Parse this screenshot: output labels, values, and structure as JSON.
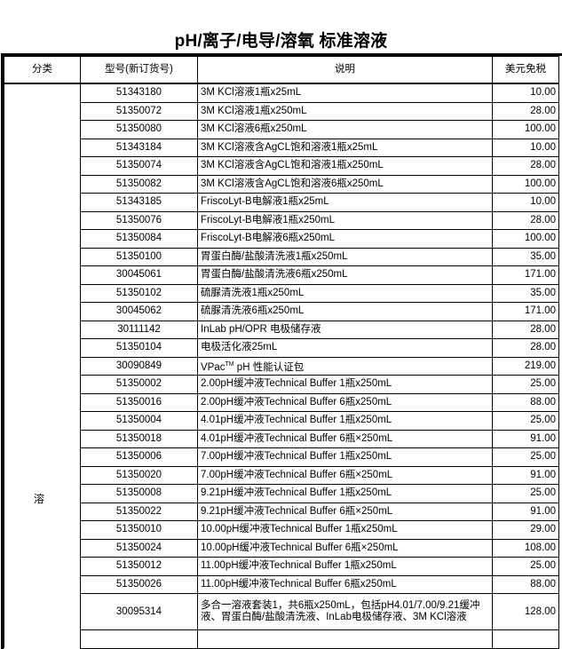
{
  "title": "pH/离子/电导/溶氧 标准溶液",
  "columns": [
    "分类",
    "型号(新订货号)",
    "说明",
    "美元免税"
  ],
  "category": "溶",
  "rows": [
    {
      "code": "51343180",
      "desc": "3M KCl溶液1瓶x25mL",
      "price": "10.00"
    },
    {
      "code": "51350072",
      "desc": "3M KCl溶液1瓶x250mL",
      "price": "28.00"
    },
    {
      "code": "51350080",
      "desc": "3M KCl溶液6瓶x250mL",
      "price": "100.00"
    },
    {
      "code": "51343184",
      "desc": "3M KCl溶液含AgCL饱和溶液1瓶x25mL",
      "price": "10.00"
    },
    {
      "code": "51350074",
      "desc": "3M KCl溶液含AgCL饱和溶液1瓶x250mL",
      "price": "28.00"
    },
    {
      "code": "51350082",
      "desc": "3M KCl溶液含AgCL饱和溶液6瓶x250mL",
      "price": "100.00"
    },
    {
      "code": "51343185",
      "desc": "FriscoLyt-B电解液1瓶x25mL",
      "price": "10.00"
    },
    {
      "code": "51350076",
      "desc": "FriscoLyt-B电解液1瓶x250mL",
      "price": "28.00"
    },
    {
      "code": "51350084",
      "desc": "FriscoLyt-B电解液6瓶x250mL",
      "price": "100.00"
    },
    {
      "code": "51350100",
      "desc": "胃蛋白酶/盐酸清洗液1瓶x250mL",
      "price": "35.00"
    },
    {
      "code": "30045061",
      "desc": "胃蛋白酶/盐酸清洗液6瓶x250mL",
      "price": "171.00"
    },
    {
      "code": "51350102",
      "desc": "硫脲清洗液1瓶x250mL",
      "price": "35.00"
    },
    {
      "code": "30045062",
      "desc": "硫脲清洗液6瓶x250mL",
      "price": "171.00"
    },
    {
      "code": "30111142",
      "desc": "InLab pH/OPR 电极储存液",
      "price": "28.00"
    },
    {
      "code": "51350104",
      "desc": "电极活化液25mL",
      "price": "28.00"
    },
    {
      "code": "30090849",
      "desc": "VPac",
      "desc_sup": "TM",
      "desc_after": " pH 性能认证包",
      "price": "219.00"
    },
    {
      "code": "51350002",
      "desc": "2.00pH缓冲液Technical Buffer 1瓶x250mL",
      "price": "25.00"
    },
    {
      "code": "51350016",
      "desc": "2.00pH缓冲液Technical Buffer 6瓶x250mL",
      "price": "88.00"
    },
    {
      "code": "51350004",
      "desc": "4.01pH缓冲液Technical Buffer 1瓶x250mL",
      "price": "25.00"
    },
    {
      "code": "51350018",
      "desc": "4.01pH缓冲液Technical Buffer 6瓶×250mL",
      "price": "91.00"
    },
    {
      "code": "51350006",
      "desc": "7.00pH缓冲液Technical Buffer 1瓶x250mL",
      "price": "25.00"
    },
    {
      "code": "51350020",
      "desc": "7.00pH缓冲液Technical Buffer 6瓶×250mL",
      "price": "91.00"
    },
    {
      "code": "51350008",
      "desc": "9.21pH缓冲液Technical Buffer 1瓶x250mL",
      "price": "25.00"
    },
    {
      "code": "51350022",
      "desc": "9.21pH缓冲液Technical Buffer 6瓶×250mL",
      "price": "91.00"
    },
    {
      "code": "51350010",
      "desc": "10.00pH缓冲液Technical Buffer 1瓶x250mL",
      "price": "29.00"
    },
    {
      "code": "51350024",
      "desc": "10.00pH缓冲液Technical Buffer 6瓶×250mL",
      "price": "108.00"
    },
    {
      "code": "51350012",
      "desc": "11.00pH缓冲液Technical Buffer 1瓶x250mL",
      "price": "25.00"
    },
    {
      "code": "51350026",
      "desc": "11.00pH缓冲液Technical Buffer 6瓶x250mL",
      "price": "88.00"
    },
    {
      "code": "30095314",
      "desc": "多合一溶液套装1，共6瓶x250mL，包括pH4.01/7.00/9.21缓冲液、胃蛋白酶/盐酸清洗液、InLab电极储存液、3M KCl溶液",
      "price": "128.00"
    }
  ]
}
